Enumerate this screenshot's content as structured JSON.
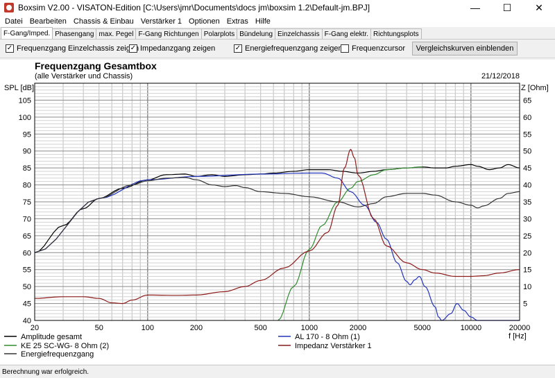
{
  "window": {
    "title": "Boxsim V2.00 - VISATON-Edition [C:\\Users\\jmr\\Documents\\docs jm\\boxsim 1.2\\Default-jm.BPJ]",
    "minimize": "—",
    "maximize": "☐",
    "close": "✕"
  },
  "menu": [
    "Datei",
    "Bearbeiten",
    "Chassis & Einbau",
    "Verstärker 1",
    "Optionen",
    "Extras",
    "Hilfe"
  ],
  "tabs": [
    "F-Gang/Imped.",
    "Phasengang",
    "max. Pegel",
    "F-Gang Richtungen",
    "Polarplots",
    "Bündelung",
    "Einzelchassis",
    "F-Gang elektr.",
    "Richtungsplots"
  ],
  "options": {
    "chk1": "Frequenzgang Einzelchassis zeigen",
    "chk2": "Impedanzgang zeigen",
    "chk3": "Energiefrequenzgang zeigen",
    "chk4": "Frequenzcursor",
    "compare_button": "Vergleichskurven einblenden",
    "checkmark": "✓"
  },
  "status": "Berechnung war erfolgreich.",
  "chart_data": {
    "type": "line",
    "title": "Frequenzgang Gesamtbox",
    "subtitle": "(alle Verstärker und Chassis)",
    "date": "21/12/2018",
    "ylabel_left": "SPL [dB]",
    "ylabel_right": "Z [Ohm]",
    "xlabel": "f [Hz]",
    "x_scale": "log",
    "xlim": [
      20,
      20000
    ],
    "ylim_left": [
      40,
      110
    ],
    "ylim_right": [
      0,
      70
    ],
    "x_ticks": [
      20,
      50,
      100,
      200,
      500,
      1000,
      2000,
      5000,
      10000,
      20000
    ],
    "y_ticks_left": [
      40,
      45,
      50,
      55,
      60,
      65,
      70,
      75,
      80,
      85,
      90,
      95,
      100,
      105
    ],
    "y_ticks_right": [
      5,
      10,
      15,
      20,
      25,
      30,
      35,
      40,
      45,
      50,
      55,
      60,
      65
    ],
    "grid": true,
    "legend_position": "bottom",
    "series": [
      {
        "name": "Amplitude gesamt",
        "color": "#000000",
        "axis": "left",
        "points": [
          [
            20,
            60
          ],
          [
            30,
            68
          ],
          [
            40,
            73
          ],
          [
            50,
            76
          ],
          [
            70,
            79
          ],
          [
            100,
            81.5
          ],
          [
            130,
            83
          ],
          [
            170,
            83.2
          ],
          [
            200,
            82.5
          ],
          [
            250,
            83
          ],
          [
            300,
            82.5
          ],
          [
            400,
            83
          ],
          [
            500,
            83.2
          ],
          [
            600,
            83.5
          ],
          [
            800,
            84
          ],
          [
            1000,
            84.5
          ],
          [
            1300,
            84.5
          ],
          [
            1600,
            84
          ],
          [
            2000,
            83.5
          ],
          [
            2500,
            84
          ],
          [
            3000,
            84.5
          ],
          [
            4000,
            85
          ],
          [
            5000,
            85.3
          ],
          [
            6000,
            85
          ],
          [
            7000,
            85
          ],
          [
            8000,
            85.5
          ],
          [
            10000,
            86
          ],
          [
            11000,
            85.5
          ],
          [
            13000,
            84.5
          ],
          [
            15000,
            85
          ],
          [
            17000,
            86
          ],
          [
            20000,
            85
          ]
        ]
      },
      {
        "name": "AL 170 - 8 Ohm (1)",
        "color": "#2233bb",
        "axis": "left",
        "points": [
          [
            20,
            60
          ],
          [
            50,
            76
          ],
          [
            100,
            81.5
          ],
          [
            200,
            82.5
          ],
          [
            500,
            83.2
          ],
          [
            1000,
            83.5
          ],
          [
            1200,
            83.5
          ],
          [
            1500,
            82
          ],
          [
            1800,
            78
          ],
          [
            2200,
            74
          ],
          [
            2600,
            69
          ],
          [
            3000,
            64
          ],
          [
            3500,
            57
          ],
          [
            4000,
            51.5
          ],
          [
            4200,
            50.5
          ],
          [
            4500,
            52
          ],
          [
            4800,
            53
          ],
          [
            5200,
            50
          ],
          [
            6000,
            44
          ],
          [
            6300,
            41
          ],
          [
            6600,
            40
          ],
          [
            7500,
            42
          ],
          [
            8200,
            45
          ],
          [
            9000,
            43
          ],
          [
            10000,
            41
          ],
          [
            11000,
            40
          ],
          [
            20000,
            40
          ]
        ]
      },
      {
        "name": "KE 25 SC-WG- 8 Ohm (2)",
        "color": "#2e8b2e",
        "axis": "left",
        "points": [
          [
            640,
            40
          ],
          [
            800,
            50
          ],
          [
            1000,
            61
          ],
          [
            1200,
            68
          ],
          [
            1500,
            75
          ],
          [
            1800,
            79
          ],
          [
            2000,
            81
          ],
          [
            2500,
            83
          ],
          [
            3000,
            84.5
          ],
          [
            4000,
            85
          ],
          [
            5000,
            85.3
          ]
        ]
      },
      {
        "name": "Energiefrequenzgang",
        "color": "#333333",
        "axis": "left",
        "points": [
          [
            20,
            60
          ],
          [
            50,
            76
          ],
          [
            80,
            80
          ],
          [
            100,
            81.2
          ],
          [
            130,
            82
          ],
          [
            170,
            82.2
          ],
          [
            200,
            81.5
          ],
          [
            250,
            80
          ],
          [
            300,
            79.5
          ],
          [
            350,
            79.8
          ],
          [
            400,
            79.2
          ],
          [
            500,
            78
          ],
          [
            700,
            77.5
          ],
          [
            1000,
            76.5
          ],
          [
            1500,
            75
          ],
          [
            2000,
            73.5
          ],
          [
            2500,
            74.5
          ],
          [
            3000,
            76.5
          ],
          [
            4000,
            77.5
          ],
          [
            5000,
            77.5
          ],
          [
            6000,
            77
          ],
          [
            8000,
            75
          ],
          [
            10000,
            74
          ],
          [
            11000,
            73.2
          ],
          [
            12000,
            73.8
          ],
          [
            15000,
            76
          ],
          [
            17000,
            77.5
          ],
          [
            20000,
            78
          ]
        ]
      },
      {
        "name": "Impedanz Verstärker 1",
        "color": "#8b1a1a",
        "axis": "right",
        "points": [
          [
            20,
            6.5
          ],
          [
            30,
            7
          ],
          [
            40,
            7
          ],
          [
            50,
            6.5
          ],
          [
            60,
            5.2
          ],
          [
            70,
            5
          ],
          [
            80,
            6
          ],
          [
            100,
            7.5
          ],
          [
            150,
            7.4
          ],
          [
            200,
            7.5
          ],
          [
            300,
            8.5
          ],
          [
            400,
            10
          ],
          [
            500,
            11.8
          ],
          [
            700,
            15.5
          ],
          [
            1000,
            20.5
          ],
          [
            1300,
            26
          ],
          [
            1500,
            34
          ],
          [
            1650,
            45
          ],
          [
            1800,
            50.5
          ],
          [
            1900,
            48
          ],
          [
            2000,
            43
          ],
          [
            2500,
            30
          ],
          [
            3000,
            22
          ],
          [
            4000,
            17
          ],
          [
            5000,
            15
          ],
          [
            6000,
            14
          ],
          [
            8000,
            13
          ],
          [
            10000,
            13
          ],
          [
            12000,
            13.2
          ],
          [
            15000,
            14
          ],
          [
            20000,
            15
          ]
        ]
      }
    ]
  }
}
